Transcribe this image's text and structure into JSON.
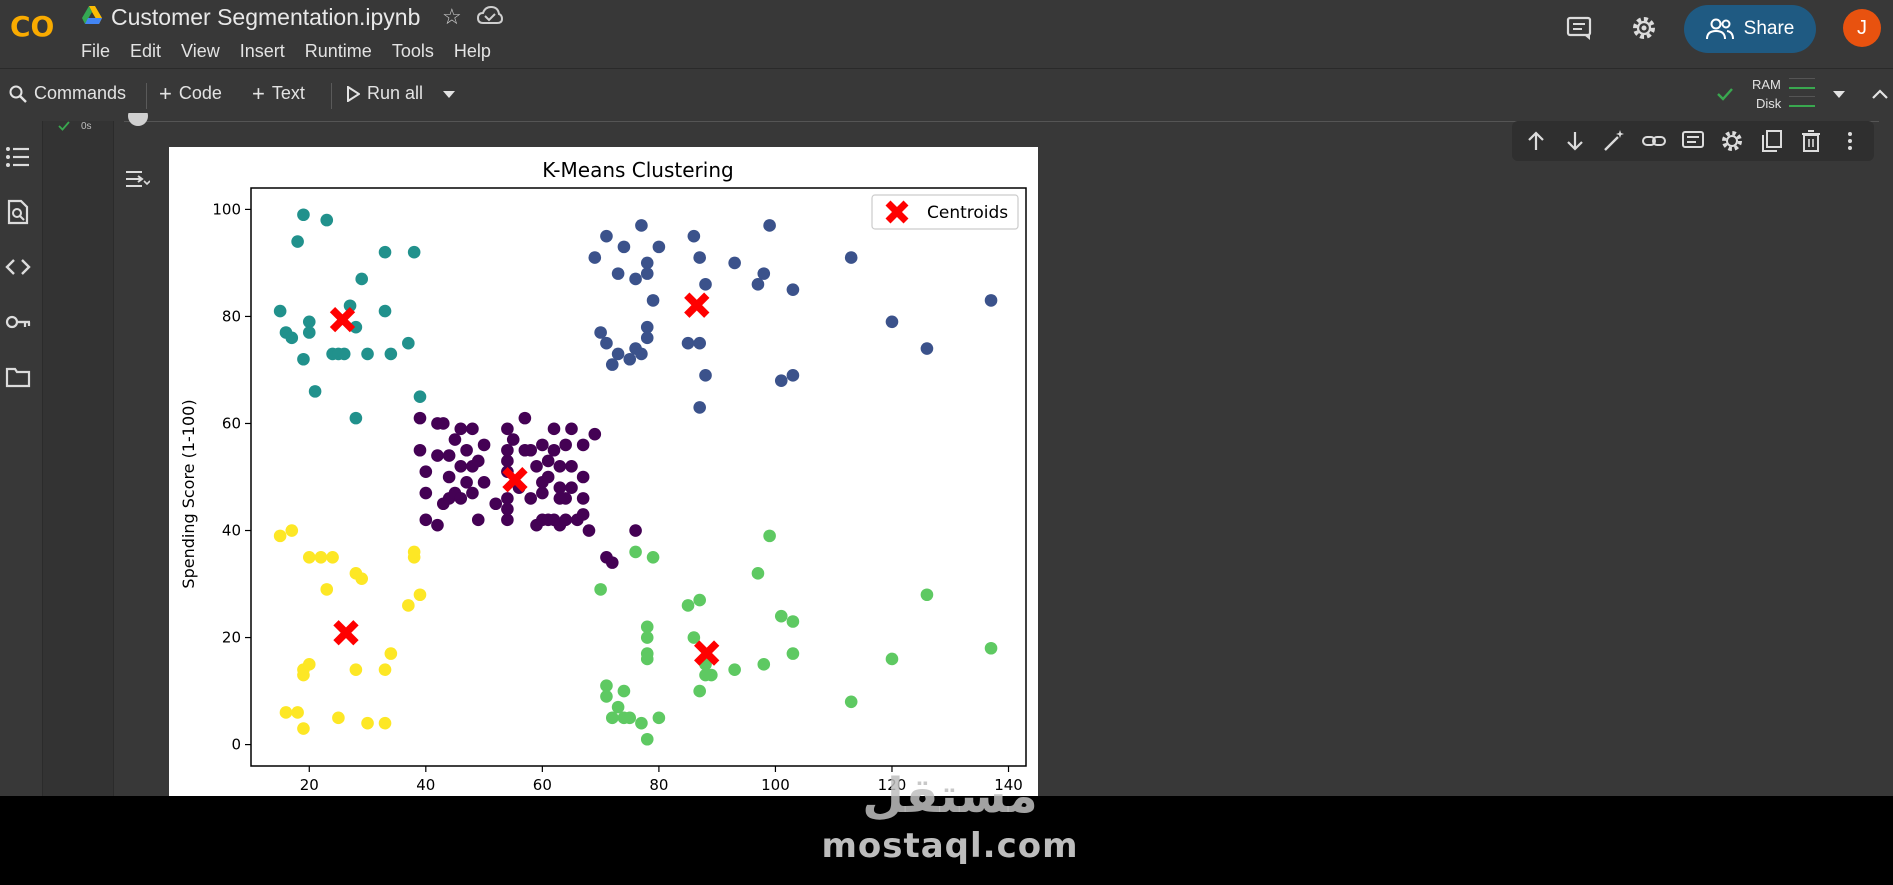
{
  "app": {
    "title": "Customer Segmentation.ipynb",
    "logo_text": "CO",
    "menu": [
      "File",
      "Edit",
      "View",
      "Insert",
      "Runtime",
      "Tools",
      "Help"
    ],
    "share_label": "Share",
    "avatar_letter": "J"
  },
  "toolbar": {
    "commands_label": "Commands",
    "code_label": "Code",
    "text_label": "Text",
    "run_all_label": "Run all",
    "ram_label": "RAM",
    "disk_label": "Disk"
  },
  "cell": {
    "exec_status": "0s"
  },
  "sidebar_icons": [
    "table-of-contents-icon",
    "find-replace-icon",
    "code-snippets-icon",
    "secrets-key-icon",
    "files-folder-icon"
  ],
  "cell_toolbar_icons": [
    "move-up-icon",
    "move-down-icon",
    "edit-magic-icon",
    "link-icon",
    "comment-icon",
    "settings-icon",
    "mirror-cell-icon",
    "delete-icon",
    "more-vert-icon"
  ],
  "colors": {
    "accent_share": "#1f5a82",
    "avatar": "#e8520f",
    "cluster_purple": "#440154",
    "cluster_blue": "#3b528b",
    "cluster_teal": "#21918c",
    "cluster_green": "#5ec962",
    "cluster_yellow": "#fde725",
    "centroid": "#ff0000"
  },
  "watermark": {
    "arabic": "مستقل",
    "url": "mostaql.com"
  },
  "chart_data": {
    "type": "scatter",
    "title": "K-Means Clustering",
    "xlabel": "",
    "ylabel": "Spending Score (1-100)",
    "xlim": [
      10,
      143
    ],
    "ylim": [
      -4,
      104
    ],
    "xticks": [
      20,
      40,
      60,
      80,
      100,
      120,
      140
    ],
    "yticks": [
      0,
      20,
      40,
      60,
      80,
      100
    ],
    "legend": {
      "label": "Centroids",
      "position": "top-right"
    },
    "series": [
      {
        "color": "#440154",
        "points": [
          [
            39,
            61
          ],
          [
            39,
            55
          ],
          [
            40,
            47
          ],
          [
            40,
            42
          ],
          [
            40,
            51
          ],
          [
            42,
            60
          ],
          [
            42,
            54
          ],
          [
            42,
            41
          ],
          [
            43,
            45
          ],
          [
            43,
            60
          ],
          [
            44,
            50
          ],
          [
            44,
            46
          ],
          [
            44,
            54
          ],
          [
            45,
            47
          ],
          [
            45,
            57
          ],
          [
            46,
            52
          ],
          [
            46,
            46
          ],
          [
            46,
            59
          ],
          [
            47,
            55
          ],
          [
            47,
            49
          ],
          [
            48,
            59
          ],
          [
            48,
            47
          ],
          [
            48,
            52
          ],
          [
            49,
            53
          ],
          [
            49,
            42
          ],
          [
            50,
            56
          ],
          [
            50,
            49
          ],
          [
            52,
            45
          ],
          [
            54,
            53
          ],
          [
            54,
            55
          ],
          [
            54,
            46
          ],
          [
            54,
            59
          ],
          [
            54,
            42
          ],
          [
            54,
            51
          ],
          [
            54,
            44
          ],
          [
            55,
            57
          ],
          [
            56,
            48
          ],
          [
            57,
            61
          ],
          [
            57,
            55
          ],
          [
            58,
            46
          ],
          [
            58,
            55
          ],
          [
            59,
            41
          ],
          [
            59,
            52
          ],
          [
            60,
            47
          ],
          [
            60,
            49
          ],
          [
            60,
            42
          ],
          [
            60,
            56
          ],
          [
            61,
            42
          ],
          [
            61,
            50
          ],
          [
            61,
            53
          ],
          [
            62,
            42
          ],
          [
            62,
            59
          ],
          [
            62,
            55
          ],
          [
            63,
            46
          ],
          [
            63,
            48
          ],
          [
            63,
            41
          ],
          [
            63,
            52
          ],
          [
            64,
            46
          ],
          [
            64,
            42
          ],
          [
            64,
            56
          ],
          [
            65,
            52
          ],
          [
            65,
            48
          ],
          [
            65,
            59
          ],
          [
            66,
            42
          ],
          [
            67,
            50
          ],
          [
            67,
            46
          ],
          [
            67,
            56
          ],
          [
            67,
            43
          ],
          [
            68,
            40
          ],
          [
            69,
            58
          ],
          [
            71,
            35
          ],
          [
            72,
            34
          ],
          [
            76,
            40
          ]
        ]
      },
      {
        "color": "#3b528b",
        "points": [
          [
            69,
            91
          ],
          [
            70,
            77
          ],
          [
            71,
            95
          ],
          [
            71,
            75
          ],
          [
            72,
            71
          ],
          [
            73,
            88
          ],
          [
            73,
            73
          ],
          [
            74,
            93
          ],
          [
            75,
            72
          ],
          [
            76,
            87
          ],
          [
            76,
            74
          ],
          [
            77,
            97
          ],
          [
            77,
            73
          ],
          [
            78,
            90
          ],
          [
            78,
            88
          ],
          [
            78,
            78
          ],
          [
            78,
            76
          ],
          [
            79,
            83
          ],
          [
            80,
            93
          ],
          [
            85,
            75
          ],
          [
            86,
            95
          ],
          [
            87,
            91
          ],
          [
            87,
            75
          ],
          [
            87,
            63
          ],
          [
            88,
            86
          ],
          [
            88,
            69
          ],
          [
            93,
            90
          ],
          [
            97,
            86
          ],
          [
            98,
            88
          ],
          [
            99,
            97
          ],
          [
            101,
            68
          ],
          [
            103,
            85
          ],
          [
            103,
            69
          ],
          [
            113,
            91
          ],
          [
            120,
            79
          ],
          [
            126,
            74
          ],
          [
            137,
            83
          ]
        ]
      },
      {
        "color": "#21918c",
        "points": [
          [
            15,
            81
          ],
          [
            16,
            77
          ],
          [
            17,
            76
          ],
          [
            18,
            94
          ],
          [
            19,
            99
          ],
          [
            19,
            72
          ],
          [
            20,
            79
          ],
          [
            20,
            77
          ],
          [
            21,
            66
          ],
          [
            23,
            98
          ],
          [
            24,
            73
          ],
          [
            25,
            73
          ],
          [
            26,
            73
          ],
          [
            27,
            82
          ],
          [
            28,
            61
          ],
          [
            28,
            78
          ],
          [
            29,
            87
          ],
          [
            30,
            73
          ],
          [
            33,
            92
          ],
          [
            33,
            81
          ],
          [
            34,
            73
          ],
          [
            37,
            75
          ],
          [
            38,
            92
          ],
          [
            39,
            65
          ]
        ]
      },
      {
        "color": "#5ec962",
        "points": [
          [
            70,
            29
          ],
          [
            71,
            11
          ],
          [
            71,
            9
          ],
          [
            72,
            5
          ],
          [
            73,
            7
          ],
          [
            74,
            10
          ],
          [
            74,
            5
          ],
          [
            75,
            5
          ],
          [
            76,
            36
          ],
          [
            77,
            4
          ],
          [
            78,
            22
          ],
          [
            78,
            20
          ],
          [
            78,
            17
          ],
          [
            78,
            16
          ],
          [
            78,
            1
          ],
          [
            79,
            35
          ],
          [
            80,
            5
          ],
          [
            85,
            26
          ],
          [
            86,
            20
          ],
          [
            87,
            27
          ],
          [
            87,
            10
          ],
          [
            88,
            13
          ],
          [
            88,
            15
          ],
          [
            89,
            13
          ],
          [
            93,
            14
          ],
          [
            97,
            32
          ],
          [
            98,
            15
          ],
          [
            99,
            39
          ],
          [
            101,
            24
          ],
          [
            103,
            23
          ],
          [
            103,
            17
          ],
          [
            113,
            8
          ],
          [
            120,
            16
          ],
          [
            126,
            28
          ],
          [
            137,
            18
          ]
        ]
      },
      {
        "color": "#fde725",
        "points": [
          [
            15,
            39
          ],
          [
            16,
            6
          ],
          [
            17,
            40
          ],
          [
            18,
            6
          ],
          [
            19,
            3
          ],
          [
            19,
            14
          ],
          [
            19,
            13
          ],
          [
            20,
            15
          ],
          [
            20,
            35
          ],
          [
            22,
            35
          ],
          [
            23,
            29
          ],
          [
            24,
            35
          ],
          [
            25,
            5
          ],
          [
            28,
            32
          ],
          [
            28,
            14
          ],
          [
            29,
            31
          ],
          [
            30,
            4
          ],
          [
            33,
            4
          ],
          [
            33,
            14
          ],
          [
            34,
            17
          ],
          [
            37,
            26
          ],
          [
            38,
            35
          ],
          [
            38,
            36
          ],
          [
            39,
            28
          ]
        ]
      }
    ],
    "centroids": [
      [
        55.3,
        49.5
      ],
      [
        86.5,
        82.1
      ],
      [
        25.7,
        79.4
      ],
      [
        88.2,
        17.1
      ],
      [
        26.3,
        20.9
      ]
    ]
  }
}
